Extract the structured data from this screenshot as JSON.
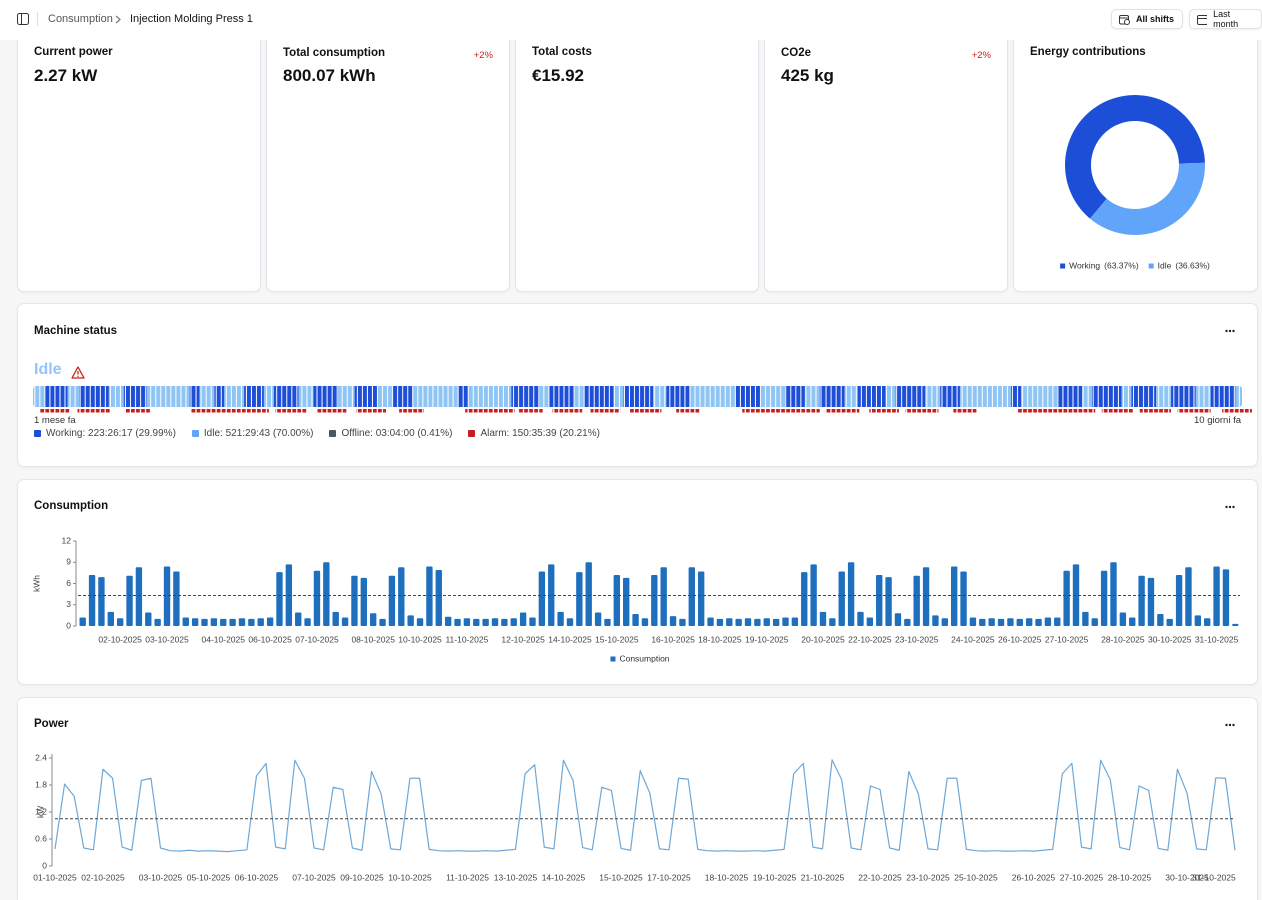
{
  "header": {
    "breadcrumb": [
      "Consumption",
      "Injection Molding Press 1"
    ],
    "buttons": [
      "All shifts",
      "Last month"
    ]
  },
  "kpis": [
    {
      "title": "Current power",
      "value": "2.27 kW"
    },
    {
      "title": "Total consumption",
      "value": "800.07 kWh",
      "change": "+2%"
    },
    {
      "title": "Total costs",
      "value": "€15.92"
    },
    {
      "title": "CO2e",
      "value": "425 kg",
      "change": "+2%"
    }
  ],
  "machine_status": {
    "title": "Machine status",
    "state": "Idle",
    "start_label": "1 mese fa",
    "end_label": "10 giorni fa",
    "legend": [
      {
        "label": "Working: 223:26:17 (29.99%)",
        "color": "#1d4ed8"
      },
      {
        "label": "Idle: 521:29:43 (70.00%)",
        "color": "#8ec5f5"
      },
      {
        "label": "Offline: 03:04:00 (0.41%)",
        "color": "#4b5563"
      },
      {
        "label": "Alarm: 150:35:39 (20.21%)",
        "color": "#c81e1e"
      }
    ],
    "segments": [
      [
        1,
        7
      ],
      [
        0,
        14
      ],
      [
        1,
        7
      ],
      [
        0,
        18
      ],
      [
        1,
        9
      ],
      [
        0,
        14
      ],
      [
        1,
        26
      ],
      [
        0,
        6
      ],
      [
        1,
        9
      ],
      [
        0,
        6
      ],
      [
        1,
        12
      ],
      [
        0,
        12
      ],
      [
        1,
        6
      ],
      [
        0,
        15
      ],
      [
        1,
        9
      ],
      [
        0,
        15
      ],
      [
        1,
        10
      ],
      [
        0,
        14
      ],
      [
        1,
        9
      ],
      [
        0,
        12
      ],
      [
        1,
        28
      ],
      [
        0,
        6
      ],
      [
        1,
        26
      ],
      [
        0,
        17
      ],
      [
        1,
        6
      ],
      [
        0,
        15
      ],
      [
        1,
        6
      ],
      [
        0,
        18
      ],
      [
        1,
        6
      ],
      [
        0,
        18
      ],
      [
        1,
        8
      ],
      [
        0,
        14
      ],
      [
        1,
        28
      ],
      [
        0,
        15
      ],
      [
        1,
        15
      ],
      [
        0,
        12
      ],
      [
        1,
        9
      ],
      [
        0,
        15
      ],
      [
        1,
        8
      ],
      [
        0,
        17
      ],
      [
        1,
        6
      ],
      [
        0,
        18
      ],
      [
        1,
        9
      ],
      [
        0,
        12
      ],
      [
        1,
        31
      ],
      [
        0,
        6
      ],
      [
        1,
        22
      ],
      [
        0,
        15
      ],
      [
        1,
        6
      ],
      [
        0,
        18
      ],
      [
        1,
        6
      ],
      [
        0,
        15
      ],
      [
        1,
        9
      ],
      [
        0,
        15
      ],
      [
        1,
        9
      ],
      [
        0,
        15
      ],
      [
        1,
        4
      ]
    ],
    "alarm_runs": [
      [
        4,
        18
      ],
      [
        5,
        20
      ],
      [
        9,
        15
      ],
      [
        25,
        47
      ],
      [
        4,
        19
      ],
      [
        6,
        18
      ],
      [
        6,
        18
      ],
      [
        8,
        15
      ],
      [
        25,
        30
      ],
      [
        2,
        15
      ],
      [
        6,
        18
      ],
      [
        5,
        18
      ],
      [
        6,
        19
      ],
      [
        9,
        14
      ],
      [
        26,
        47
      ],
      [
        4,
        20
      ],
      [
        6,
        18
      ],
      [
        4,
        20
      ],
      [
        9,
        14
      ],
      [
        25,
        47
      ],
      [
        4,
        19
      ],
      [
        4,
        19
      ],
      [
        4,
        20
      ],
      [
        7,
        18
      ]
    ]
  },
  "chart_data": [
    {
      "type": "pie",
      "title": "Energy contributions",
      "donut": true,
      "categories": [
        "Working",
        "Idle"
      ],
      "values": [
        63.37,
        36.63
      ],
      "value_labels": [
        "(63.37%)",
        "(36.63%)"
      ],
      "colors": [
        "#1d4ed8",
        "#60a5fa"
      ]
    },
    {
      "type": "bar",
      "title": "Consumption",
      "ylabel": "kWh",
      "categories": [
        null,
        null,
        null,
        null,
        "02-10-2025",
        null,
        null,
        null,
        null,
        "03-10-2025",
        null,
        null,
        null,
        null,
        null,
        "04-10-2025",
        null,
        null,
        null,
        null,
        "06-10-2025",
        null,
        null,
        null,
        null,
        "07-10-2025",
        null,
        null,
        null,
        null,
        null,
        "08-10-2025",
        null,
        null,
        null,
        null,
        "10-10-2025",
        null,
        null,
        null,
        null,
        "11-10-2025",
        null,
        null,
        null,
        null,
        null,
        "12-10-2025",
        null,
        null,
        null,
        null,
        "14-10-2025",
        null,
        null,
        null,
        null,
        "15-10-2025",
        null,
        null,
        null,
        null,
        null,
        "16-10-2025",
        null,
        null,
        null,
        null,
        "18-10-2025",
        null,
        null,
        null,
        null,
        "19-10-2025",
        null,
        null,
        null,
        null,
        null,
        "20-10-2025",
        null,
        null,
        null,
        null,
        "22-10-2025",
        null,
        null,
        null,
        null,
        "23-10-2025",
        null,
        null,
        null,
        null,
        null,
        "24-10-2025",
        null,
        null,
        null,
        null,
        "26-10-2025",
        null,
        null,
        null,
        null,
        "27-10-2025",
        null,
        null,
        null,
        null,
        null,
        "28-10-2025",
        null,
        null,
        null,
        null,
        "30-10-2025",
        null,
        null,
        null,
        null,
        "31-10-2025",
        null,
        null
      ],
      "series": [
        {
          "name": "Consumption",
          "color": "#1f6fbf",
          "values": [
            1.2,
            7.2,
            6.9,
            2.0,
            1.1,
            7.1,
            8.3,
            1.9,
            1.0,
            8.4,
            7.7,
            1.2,
            1.1,
            1.0,
            1.1,
            1.0,
            1.0,
            1.1,
            1.0,
            1.1,
            1.2,
            7.6,
            8.7,
            1.9,
            1.1,
            7.8,
            9.0,
            2.0,
            1.2,
            7.1,
            6.8,
            1.8,
            1.0,
            7.1,
            8.3,
            1.5,
            1.1,
            8.4,
            7.9,
            1.3,
            1.0,
            1.1,
            1.0,
            1.0,
            1.1,
            1.0,
            1.1,
            1.9,
            1.2,
            7.7,
            8.7,
            2.0,
            1.1,
            7.6,
            9.0,
            1.9,
            1.0,
            7.2,
            6.8,
            1.7,
            1.1,
            7.2,
            8.3,
            1.4,
            1.0,
            8.3,
            7.7,
            1.2,
            1.0,
            1.1,
            1.0,
            1.1,
            1.0,
            1.1,
            1.0,
            1.2,
            1.2,
            7.6,
            8.7,
            2.0,
            1.1,
            7.7,
            9.0,
            2.0,
            1.2,
            7.2,
            6.9,
            1.8,
            1.0,
            7.1,
            8.3,
            1.5,
            1.1,
            8.4,
            7.7,
            1.2,
            1.0,
            1.1,
            1.0,
            1.1,
            1.0,
            1.1,
            1.0,
            1.2,
            1.2,
            7.8,
            8.7,
            2.0,
            1.1,
            7.8,
            9.0,
            1.9,
            1.2,
            7.1,
            6.8,
            1.7,
            1.0,
            7.2,
            8.3,
            1.5,
            1.1,
            8.4,
            8.0,
            0.3
          ]
        }
      ],
      "ylim": [
        0,
        12
      ],
      "yticks": [
        0,
        3,
        6,
        9,
        12
      ],
      "reference_line": 4.3,
      "legend": "bottom"
    },
    {
      "type": "line",
      "title": "Power",
      "ylabel": "kW",
      "color": "#6fa8d6",
      "categories": [
        "01-10-2025",
        null,
        null,
        null,
        null,
        "02-10-2025",
        null,
        null,
        null,
        null,
        null,
        "03-10-2025",
        null,
        null,
        null,
        null,
        "05-10-2025",
        null,
        null,
        null,
        null,
        "06-10-2025",
        null,
        null,
        null,
        null,
        null,
        "07-10-2025",
        null,
        null,
        null,
        null,
        "09-10-2025",
        null,
        null,
        null,
        null,
        "10-10-2025",
        null,
        null,
        null,
        null,
        null,
        "11-10-2025",
        null,
        null,
        null,
        null,
        "13-10-2025",
        null,
        null,
        null,
        null,
        "14-10-2025",
        null,
        null,
        null,
        null,
        null,
        "15-10-2025",
        null,
        null,
        null,
        null,
        "17-10-2025",
        null,
        null,
        null,
        null,
        null,
        "18-10-2025",
        null,
        null,
        null,
        null,
        "19-10-2025",
        null,
        null,
        null,
        null,
        "21-10-2025",
        null,
        null,
        null,
        null,
        null,
        "22-10-2025",
        null,
        null,
        null,
        null,
        "23-10-2025",
        null,
        null,
        null,
        null,
        "25-10-2025",
        null,
        null,
        null,
        null,
        null,
        "26-10-2025",
        null,
        null,
        null,
        null,
        "27-10-2025",
        null,
        null,
        null,
        null,
        "28-10-2025",
        null,
        null,
        null,
        null,
        null,
        "30-10-2025",
        null,
        null,
        null,
        null,
        "31-10-2025"
      ],
      "values": [
        0.38,
        1.82,
        1.55,
        0.4,
        0.36,
        2.15,
        1.95,
        0.42,
        0.35,
        1.9,
        1.95,
        0.4,
        0.34,
        0.33,
        0.35,
        0.33,
        0.34,
        0.33,
        0.32,
        0.34,
        0.36,
        2.0,
        2.28,
        0.42,
        0.38,
        2.35,
        1.95,
        0.4,
        0.36,
        1.75,
        1.7,
        0.4,
        0.35,
        2.1,
        1.6,
        0.38,
        0.36,
        1.95,
        1.95,
        0.37,
        0.34,
        0.33,
        0.34,
        0.33,
        0.33,
        0.34,
        0.33,
        0.35,
        0.37,
        2.05,
        2.25,
        0.42,
        0.38,
        2.35,
        1.9,
        0.41,
        0.36,
        1.75,
        1.68,
        0.39,
        0.35,
        2.12,
        1.62,
        0.38,
        0.36,
        1.95,
        1.93,
        0.37,
        0.34,
        0.33,
        0.34,
        0.33,
        0.33,
        0.34,
        0.33,
        0.35,
        0.37,
        2.05,
        2.28,
        0.42,
        0.38,
        2.36,
        1.92,
        0.4,
        0.36,
        1.78,
        1.7,
        0.4,
        0.35,
        2.1,
        1.6,
        0.38,
        0.36,
        1.95,
        1.95,
        0.37,
        0.34,
        0.33,
        0.34,
        0.33,
        0.33,
        0.34,
        0.33,
        0.35,
        0.37,
        2.05,
        2.28,
        0.42,
        0.38,
        2.35,
        1.92,
        0.41,
        0.36,
        1.78,
        1.68,
        0.39,
        0.35,
        2.15,
        1.62,
        0.38,
        0.36,
        1.96,
        1.95,
        0.35
      ],
      "ylim": [
        0,
        2.4
      ],
      "yticks": [
        0,
        0.6,
        1.2,
        1.8,
        2.4
      ],
      "reference_line": 1.05
    }
  ]
}
